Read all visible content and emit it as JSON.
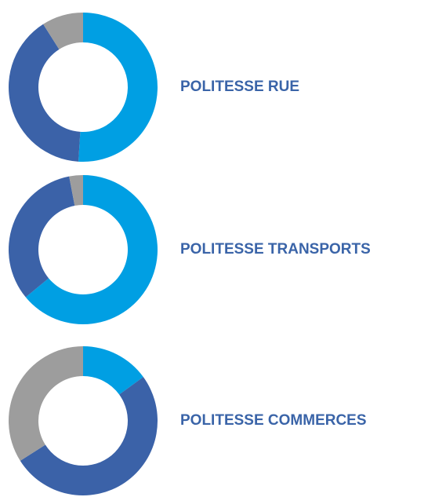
{
  "chart_data": [
    {
      "type": "donut",
      "title": "POLITESSE RUE",
      "values": [
        51,
        40,
        9
      ],
      "colors": [
        "#009fe3",
        "#3b62a8",
        "#9d9d9d"
      ]
    },
    {
      "type": "donut",
      "title": "POLITESSE TRANSPORTS",
      "values": [
        64,
        33,
        3
      ],
      "colors": [
        "#009fe3",
        "#3b62a8",
        "#9d9d9d"
      ]
    },
    {
      "type": "donut",
      "title": "POLITESSE COMMERCES",
      "values": [
        15,
        51,
        34
      ],
      "colors": [
        "#009fe3",
        "#3b62a8",
        "#9d9d9d"
      ]
    }
  ]
}
